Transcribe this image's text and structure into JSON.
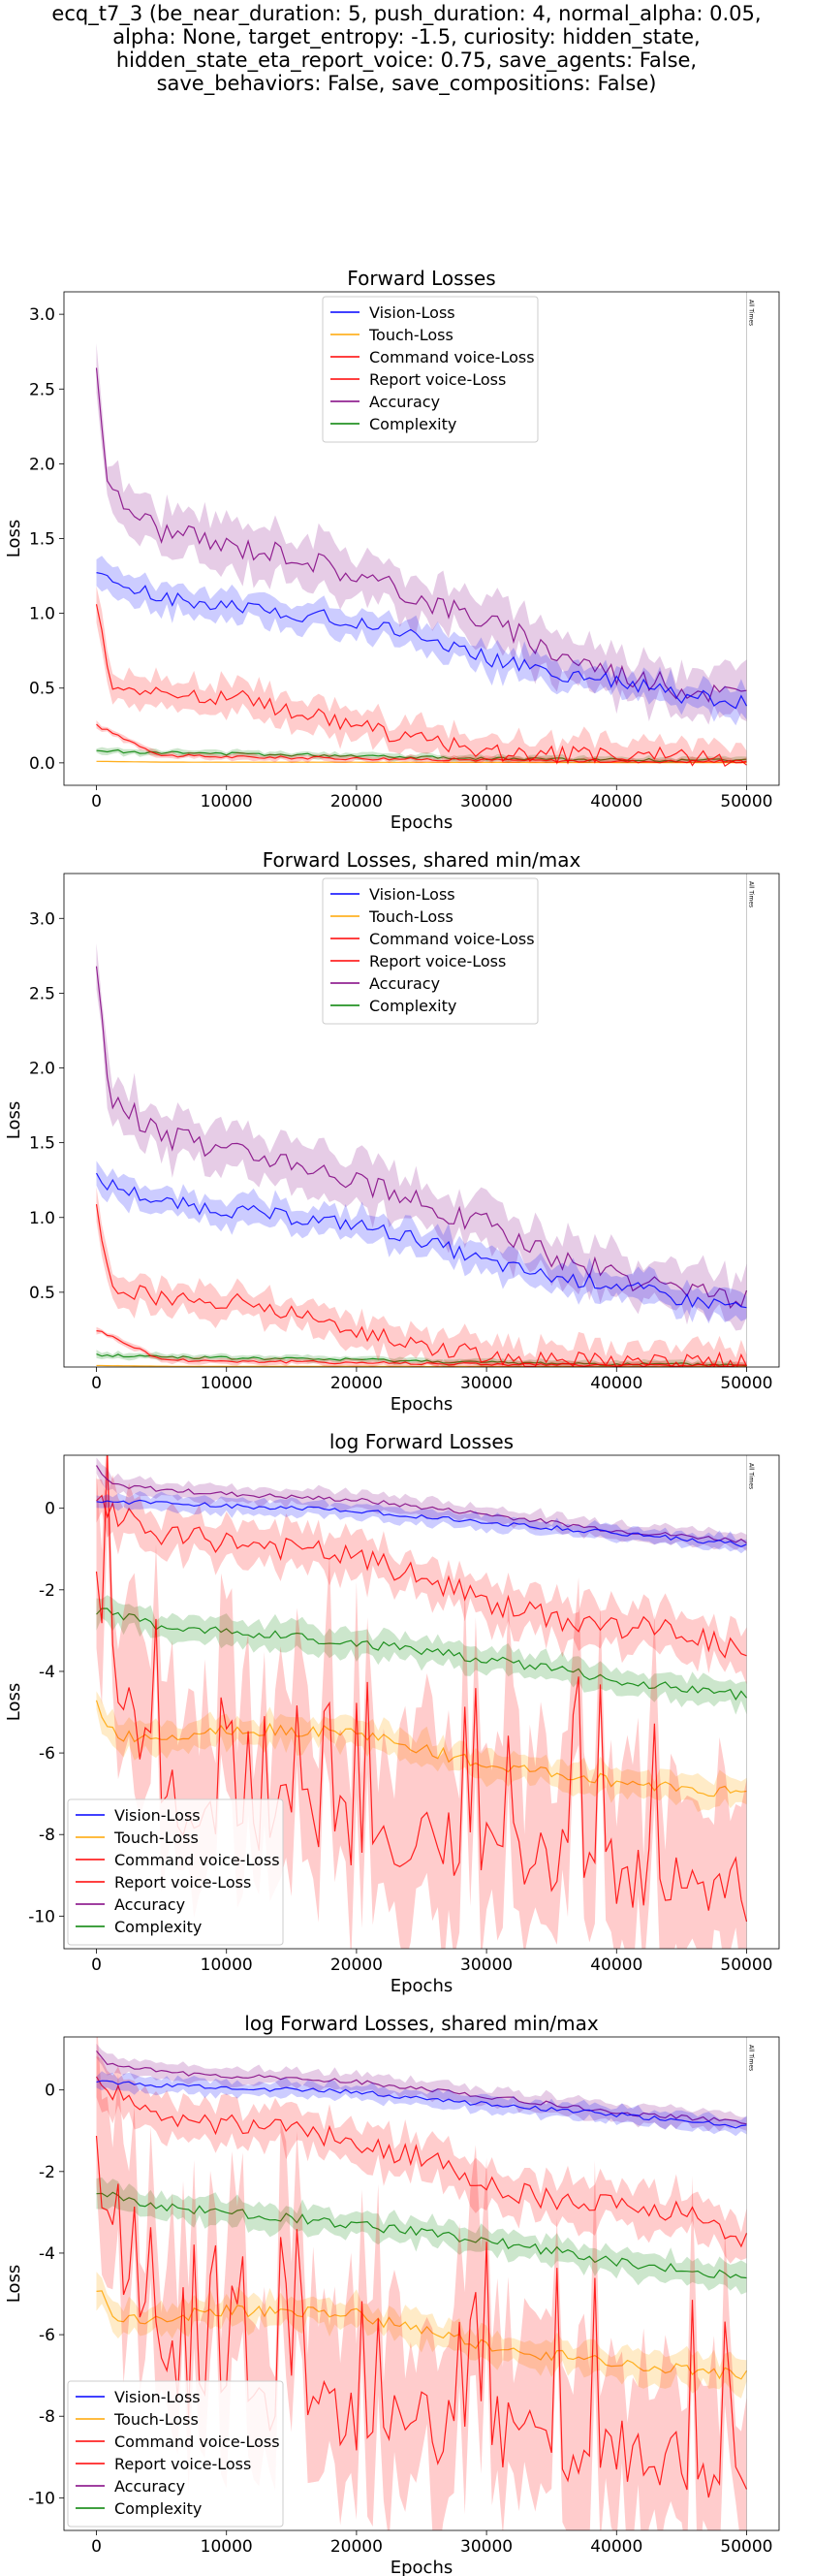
{
  "figure": {
    "suptitle_lines": [
      "ecq_t7_3 (be_near_duration: 5, push_duration: 4, normal_alpha: 0.05,",
      "alpha: None, target_entropy: -1.5, curiosity: hidden_state,",
      "hidden_state_eta_report_voice: 0.75, save_agents: False,",
      "save_behaviors: False, save_compositions: False)"
    ],
    "vline_label": "All Times"
  },
  "colors": {
    "Vision-Loss": "#0000ff",
    "Touch-Loss": "#ffa500",
    "Command voice-Loss": "#ff0000",
    "Report voice-Loss": "#ff0000",
    "Accuracy": "#800080",
    "Complexity": "#008000"
  },
  "chart_data": [
    {
      "type": "line",
      "title": "Forward Losses",
      "xlabel": "Epochs",
      "ylabel": "Loss",
      "xlim": [
        -2500,
        52500
      ],
      "ylim": [
        -0.15,
        3.15
      ],
      "xticks": [
        0,
        10000,
        20000,
        30000,
        40000,
        50000
      ],
      "yticks": [
        0.0,
        0.5,
        1.0,
        1.5,
        2.0,
        2.5,
        3.0
      ],
      "vline_x": 50000,
      "legend_position": "top-center",
      "series": [
        {
          "name": "Vision-Loss",
          "x": [
            0,
            5000,
            10000,
            15000,
            20000,
            25000,
            30000,
            35000,
            40000,
            45000,
            50000
          ],
          "values": [
            1.25,
            1.1,
            1.05,
            1.0,
            0.95,
            0.85,
            0.7,
            0.6,
            0.55,
            0.45,
            0.4
          ]
        },
        {
          "name": "Touch-Loss",
          "x": [
            0,
            5000,
            10000,
            20000,
            30000,
            40000,
            50000
          ],
          "values": [
            0.01,
            0.005,
            0.004,
            0.004,
            0.003,
            0.002,
            0.002
          ]
        },
        {
          "name": "Command voice-Loss",
          "x": [
            0,
            5000,
            10000,
            20000,
            30000,
            40000,
            50000
          ],
          "values": [
            0.25,
            0.05,
            0.04,
            0.03,
            0.02,
            0.01,
            0.01
          ]
        },
        {
          "name": "Report voice-Loss",
          "x": [
            0,
            1000,
            5000,
            10000,
            15000,
            20000,
            25000,
            30000,
            35000,
            40000,
            45000,
            50000
          ],
          "values": [
            1.1,
            0.55,
            0.45,
            0.45,
            0.35,
            0.25,
            0.15,
            0.08,
            0.05,
            0.05,
            0.04,
            0.03
          ]
        },
        {
          "name": "Accuracy",
          "x": [
            0,
            1000,
            5000,
            10000,
            15000,
            20000,
            25000,
            30000,
            35000,
            40000,
            45000,
            50000
          ],
          "values": [
            2.65,
            1.8,
            1.55,
            1.45,
            1.4,
            1.25,
            1.1,
            0.95,
            0.75,
            0.6,
            0.5,
            0.45
          ]
        },
        {
          "name": "Complexity",
          "x": [
            0,
            10000,
            20000,
            30000,
            40000,
            50000
          ],
          "values": [
            0.08,
            0.06,
            0.05,
            0.03,
            0.02,
            0.015
          ]
        }
      ]
    },
    {
      "type": "line",
      "title": "Forward Losses, shared min/max",
      "xlabel": "Epochs",
      "ylabel": "Loss",
      "xlim": [
        -2500,
        52500
      ],
      "ylim": [
        0.0,
        3.3
      ],
      "xticks": [
        0,
        10000,
        20000,
        30000,
        40000,
        50000
      ],
      "yticks": [
        0.5,
        1.0,
        1.5,
        2.0,
        2.5,
        3.0
      ],
      "vline_x": 50000,
      "legend_position": "top-center",
      "series": [
        {
          "name": "Vision-Loss",
          "x": [
            0,
            5000,
            10000,
            15000,
            20000,
            25000,
            30000,
            35000,
            40000,
            45000,
            50000
          ],
          "values": [
            1.25,
            1.1,
            1.05,
            1.0,
            0.95,
            0.85,
            0.7,
            0.6,
            0.55,
            0.45,
            0.4
          ]
        },
        {
          "name": "Touch-Loss",
          "x": [
            0,
            5000,
            10000,
            20000,
            30000,
            40000,
            50000
          ],
          "values": [
            0.01,
            0.005,
            0.004,
            0.004,
            0.003,
            0.002,
            0.002
          ]
        },
        {
          "name": "Command voice-Loss",
          "x": [
            0,
            5000,
            10000,
            20000,
            30000,
            40000,
            50000
          ],
          "values": [
            0.25,
            0.05,
            0.04,
            0.03,
            0.02,
            0.01,
            0.01
          ]
        },
        {
          "name": "Report voice-Loss",
          "x": [
            0,
            1000,
            5000,
            10000,
            15000,
            20000,
            25000,
            30000,
            35000,
            40000,
            45000,
            50000
          ],
          "values": [
            1.1,
            0.55,
            0.45,
            0.45,
            0.35,
            0.25,
            0.15,
            0.08,
            0.05,
            0.05,
            0.04,
            0.03
          ]
        },
        {
          "name": "Accuracy",
          "x": [
            0,
            1000,
            5000,
            10000,
            15000,
            20000,
            25000,
            30000,
            35000,
            40000,
            45000,
            50000
          ],
          "values": [
            2.65,
            1.8,
            1.55,
            1.45,
            1.4,
            1.25,
            1.1,
            0.95,
            0.75,
            0.6,
            0.5,
            0.45
          ]
        },
        {
          "name": "Complexity",
          "x": [
            0,
            10000,
            20000,
            30000,
            40000,
            50000
          ],
          "values": [
            0.08,
            0.06,
            0.05,
            0.03,
            0.02,
            0.015
          ]
        }
      ]
    },
    {
      "type": "line",
      "title": "log Forward Losses",
      "xlabel": "Epochs",
      "ylabel": "Loss",
      "xlim": [
        -2500,
        52500
      ],
      "ylim": [
        -10.8,
        1.3
      ],
      "xticks": [
        0,
        10000,
        20000,
        30000,
        40000,
        50000
      ],
      "yticks": [
        0,
        -2,
        -4,
        -6,
        -8,
        -10
      ],
      "vline_x": 50000,
      "legend_position": "lower-left",
      "series": [
        {
          "name": "Vision-Loss",
          "x": [
            0,
            10000,
            20000,
            30000,
            40000,
            50000
          ],
          "values": [
            0.2,
            0.05,
            -0.05,
            -0.35,
            -0.6,
            -0.9
          ]
        },
        {
          "name": "Touch-Loss",
          "x": [
            0,
            1000,
            2000,
            5000,
            10000,
            20000,
            30000,
            40000,
            50000
          ],
          "values": [
            -4.8,
            -5.4,
            -5.6,
            -5.6,
            -5.4,
            -5.5,
            -6.3,
            -6.7,
            -7.0
          ]
        },
        {
          "name": "Command voice-Loss",
          "x": [
            0,
            2000,
            5000,
            10000,
            15000,
            20000,
            25000,
            30000,
            35000,
            40000,
            45000,
            50000
          ],
          "values": [
            -1.3,
            -4.8,
            -6.8,
            -7.8,
            -7.5,
            -8.0,
            -8.3,
            -8.3,
            -8.6,
            -9.0,
            -9.1,
            -9.4
          ]
        },
        {
          "name": "Report voice-Loss",
          "x": [
            0,
            5000,
            10000,
            15000,
            20000,
            25000,
            30000,
            35000,
            40000,
            45000,
            50000
          ],
          "values": [
            0.1,
            -0.7,
            -0.8,
            -1.0,
            -1.2,
            -1.7,
            -2.3,
            -2.7,
            -2.9,
            -3.0,
            -3.6
          ]
        },
        {
          "name": "Accuracy",
          "x": [
            0,
            1000,
            5000,
            10000,
            20000,
            30000,
            40000,
            50000
          ],
          "values": [
            1.0,
            0.6,
            0.45,
            0.35,
            0.2,
            -0.15,
            -0.55,
            -0.8
          ]
        },
        {
          "name": "Complexity",
          "x": [
            0,
            5000,
            10000,
            20000,
            30000,
            40000,
            50000
          ],
          "values": [
            -2.5,
            -2.9,
            -3.0,
            -3.3,
            -3.7,
            -4.2,
            -4.6
          ]
        }
      ]
    },
    {
      "type": "line",
      "title": "log Forward Losses, shared min/max",
      "xlabel": "Epochs",
      "ylabel": "Loss",
      "xlim": [
        -2500,
        52500
      ],
      "ylim": [
        -10.8,
        1.3
      ],
      "xticks": [
        0,
        10000,
        20000,
        30000,
        40000,
        50000
      ],
      "yticks": [
        0,
        -2,
        -4,
        -6,
        -8,
        -10
      ],
      "vline_x": 50000,
      "legend_position": "lower-left",
      "series": [
        {
          "name": "Vision-Loss",
          "x": [
            0,
            10000,
            20000,
            30000,
            40000,
            50000
          ],
          "values": [
            0.2,
            0.05,
            -0.05,
            -0.35,
            -0.6,
            -0.9
          ]
        },
        {
          "name": "Touch-Loss",
          "x": [
            0,
            1000,
            2000,
            5000,
            10000,
            20000,
            30000,
            40000,
            50000
          ],
          "values": [
            -4.8,
            -5.4,
            -5.6,
            -5.6,
            -5.4,
            -5.5,
            -6.3,
            -6.7,
            -7.0
          ]
        },
        {
          "name": "Command voice-Loss",
          "x": [
            0,
            2000,
            5000,
            10000,
            15000,
            20000,
            25000,
            30000,
            35000,
            40000,
            45000,
            50000
          ],
          "values": [
            -1.3,
            -4.8,
            -6.8,
            -7.8,
            -7.5,
            -8.0,
            -8.3,
            -8.3,
            -8.6,
            -9.0,
            -9.1,
            -9.4
          ]
        },
        {
          "name": "Report voice-Loss",
          "x": [
            0,
            5000,
            10000,
            15000,
            20000,
            25000,
            30000,
            35000,
            40000,
            45000,
            50000
          ],
          "values": [
            0.1,
            -0.7,
            -0.8,
            -1.0,
            -1.2,
            -1.7,
            -2.3,
            -2.7,
            -2.9,
            -3.0,
            -3.6
          ]
        },
        {
          "name": "Accuracy",
          "x": [
            0,
            1000,
            5000,
            10000,
            20000,
            30000,
            40000,
            50000
          ],
          "values": [
            1.0,
            0.6,
            0.45,
            0.35,
            0.2,
            -0.15,
            -0.55,
            -0.8
          ]
        },
        {
          "name": "Complexity",
          "x": [
            0,
            5000,
            10000,
            20000,
            30000,
            40000,
            50000
          ],
          "values": [
            -2.5,
            -2.9,
            -3.0,
            -3.3,
            -3.7,
            -4.2,
            -4.6
          ]
        }
      ]
    }
  ]
}
